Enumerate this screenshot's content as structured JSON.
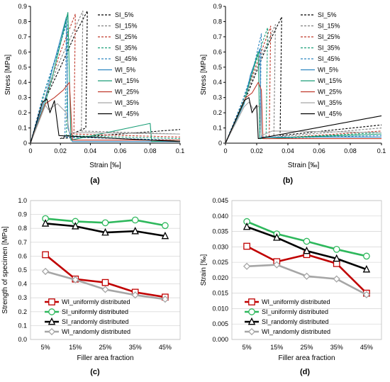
{
  "chart_data": [
    {
      "panel": "(a)",
      "type": "line",
      "xlabel": "Strain [‰]",
      "ylabel": "Stress [MPa]",
      "xlim": [
        0,
        0.1
      ],
      "ylim": [
        0,
        0.9
      ],
      "xticks": [
        "0",
        "0.02",
        "0.04",
        "0.06",
        "0.08",
        "0.1"
      ],
      "yticks": [
        "0",
        "0.1",
        "0.2",
        "0.3",
        "0.4",
        "0.5",
        "0.6",
        "0.7",
        "0.8",
        "0.9"
      ],
      "legend_position": "top-right",
      "series": [
        {
          "name": "SI_5%",
          "color": "#000000",
          "dash": true,
          "points": [
            [
              0,
              0
            ],
            [
              0.009,
              0.27
            ],
            [
              0.02,
              0.5
            ],
            [
              0.03,
              0.72
            ],
            [
              0.038,
              0.87
            ],
            [
              0.037,
              0.1
            ],
            [
              0.02,
              0.03
            ],
            [
              0.1,
              0.09
            ]
          ]
        },
        {
          "name": "SI_15%",
          "color": "#7f7f7f",
          "dash": true,
          "points": [
            [
              0,
              0
            ],
            [
              0.01,
              0.3
            ],
            [
              0.02,
              0.55
            ],
            [
              0.035,
              0.87
            ],
            [
              0.034,
              0.08
            ],
            [
              0.1,
              0.06
            ]
          ]
        },
        {
          "name": "SI_25%",
          "color": "#c0392b",
          "dash": true,
          "points": [
            [
              0,
              0
            ],
            [
              0.01,
              0.3
            ],
            [
              0.02,
              0.6
            ],
            [
              0.03,
              0.85
            ],
            [
              0.029,
              0.06
            ],
            [
              0.1,
              0.04
            ]
          ]
        },
        {
          "name": "SI_35%",
          "color": "#1a9e77",
          "dash": true,
          "points": [
            [
              0,
              0
            ],
            [
              0.01,
              0.35
            ],
            [
              0.02,
              0.65
            ],
            [
              0.025,
              0.84
            ],
            [
              0.024,
              0.05
            ],
            [
              0.1,
              0.03
            ]
          ]
        },
        {
          "name": "SI_45%",
          "color": "#2e86c1",
          "dash": true,
          "points": [
            [
              0,
              0
            ],
            [
              0.008,
              0.3
            ],
            [
              0.018,
              0.6
            ],
            [
              0.024,
              0.78
            ],
            [
              0.023,
              0.04
            ],
            [
              0.1,
              0.02
            ]
          ]
        },
        {
          "name": "WI_5%",
          "color": "#2e86c1",
          "dash": false,
          "points": [
            [
              0,
              0
            ],
            [
              0.01,
              0.3
            ],
            [
              0.015,
              0.5
            ],
            [
              0.024,
              0.83
            ],
            [
              0.025,
              0.1
            ],
            [
              0.028,
              0.01
            ],
            [
              0.1,
              0.01
            ]
          ]
        },
        {
          "name": "WI_15%",
          "color": "#1a9e77",
          "dash": false,
          "points": [
            [
              0,
              0
            ],
            [
              0.01,
              0.27
            ],
            [
              0.015,
              0.45
            ],
            [
              0.025,
              0.86
            ],
            [
              0.027,
              0.02
            ],
            [
              0.08,
              0.13
            ],
            [
              0.081,
              0.01
            ],
            [
              0.1,
              0.02
            ]
          ]
        },
        {
          "name": "WI_25%",
          "color": "#c0392b",
          "dash": false,
          "points": [
            [
              0,
              0
            ],
            [
              0.01,
              0.26
            ],
            [
              0.016,
              0.3
            ],
            [
              0.022,
              0.35
            ],
            [
              0.026,
              0.4
            ],
            [
              0.028,
              0.02
            ],
            [
              0.1,
              0.02
            ]
          ]
        },
        {
          "name": "WI_35%",
          "color": "#a6a6a6",
          "dash": false,
          "points": [
            [
              0,
              0
            ],
            [
              0.01,
              0.25
            ],
            [
              0.012,
              0.22
            ],
            [
              0.018,
              0.26
            ],
            [
              0.024,
              0.2
            ],
            [
              0.026,
              0.07
            ],
            [
              0.03,
              0.07
            ],
            [
              0.1,
              0.06
            ]
          ]
        },
        {
          "name": "WI_45%",
          "color": "#000000",
          "dash": false,
          "points": [
            [
              0,
              0
            ],
            [
              0.008,
              0.27
            ],
            [
              0.011,
              0.29
            ],
            [
              0.013,
              0.2
            ],
            [
              0.016,
              0.28
            ],
            [
              0.019,
              0.05
            ],
            [
              0.1,
              0.01
            ]
          ]
        }
      ]
    },
    {
      "panel": "(b)",
      "type": "line",
      "xlabel": "Strain [‰]",
      "ylabel": "Stress [MPa]",
      "xlim": [
        0,
        0.1
      ],
      "ylim": [
        0,
        0.9
      ],
      "xticks": [
        "0",
        "0.02",
        "0.04",
        "0.06",
        "0.08",
        "0.1"
      ],
      "yticks": [
        "0",
        "0.1",
        "0.2",
        "0.3",
        "0.4",
        "0.5",
        "0.6",
        "0.7",
        "0.8",
        "0.9"
      ],
      "legend_position": "top-right",
      "series": [
        {
          "name": "SI_5%",
          "color": "#000000",
          "dash": true,
          "points": [
            [
              0,
              0
            ],
            [
              0.012,
              0.27
            ],
            [
              0.025,
              0.6
            ],
            [
              0.036,
              0.83
            ],
            [
              0.035,
              0.05
            ],
            [
              0.1,
              0.12
            ]
          ]
        },
        {
          "name": "SI_15%",
          "color": "#7f7f7f",
          "dash": true,
          "points": [
            [
              0,
              0
            ],
            [
              0.012,
              0.28
            ],
            [
              0.022,
              0.55
            ],
            [
              0.032,
              0.78
            ],
            [
              0.031,
              0.04
            ],
            [
              0.1,
              0.1
            ]
          ]
        },
        {
          "name": "SI_25%",
          "color": "#c0392b",
          "dash": true,
          "points": [
            [
              0,
              0
            ],
            [
              0.012,
              0.3
            ],
            [
              0.02,
              0.52
            ],
            [
              0.029,
              0.77
            ],
            [
              0.028,
              0.03
            ],
            [
              0.1,
              0.08
            ]
          ]
        },
        {
          "name": "SI_35%",
          "color": "#1a9e77",
          "dash": true,
          "points": [
            [
              0,
              0
            ],
            [
              0.012,
              0.3
            ],
            [
              0.02,
              0.55
            ],
            [
              0.027,
              0.76
            ],
            [
              0.026,
              0.03
            ],
            [
              0.1,
              0.07
            ]
          ]
        },
        {
          "name": "SI_45%",
          "color": "#2e86c1",
          "dash": true,
          "points": [
            [
              0,
              0
            ],
            [
              0.011,
              0.28
            ],
            [
              0.018,
              0.5
            ],
            [
              0.023,
              0.72
            ],
            [
              0.022,
              0.03
            ],
            [
              0.1,
              0.05
            ]
          ]
        },
        {
          "name": "WI_5%",
          "color": "#2e86c1",
          "dash": false,
          "points": [
            [
              0,
              0
            ],
            [
              0.012,
              0.26
            ],
            [
              0.016,
              0.45
            ],
            [
              0.022,
              0.62
            ],
            [
              0.023,
              0.04
            ],
            [
              0.1,
              0.04
            ]
          ]
        },
        {
          "name": "WI_15%",
          "color": "#1a9e77",
          "dash": false,
          "points": [
            [
              0,
              0
            ],
            [
              0.012,
              0.27
            ],
            [
              0.016,
              0.42
            ],
            [
              0.021,
              0.6
            ],
            [
              0.022,
              0.03
            ],
            [
              0.1,
              0.06
            ]
          ]
        },
        {
          "name": "WI_25%",
          "color": "#c0392b",
          "dash": false,
          "points": [
            [
              0,
              0
            ],
            [
              0.013,
              0.3
            ],
            [
              0.017,
              0.33
            ],
            [
              0.021,
              0.4
            ],
            [
              0.023,
              0.35
            ],
            [
              0.024,
              0.03
            ],
            [
              0.1,
              0.03
            ]
          ]
        },
        {
          "name": "WI_35%",
          "color": "#a6a6a6",
          "dash": false,
          "points": [
            [
              0,
              0
            ],
            [
              0.012,
              0.24
            ],
            [
              0.015,
              0.27
            ],
            [
              0.018,
              0.22
            ],
            [
              0.022,
              0.25
            ],
            [
              0.023,
              0.05
            ],
            [
              0.03,
              0.08
            ],
            [
              0.1,
              0.07
            ]
          ]
        },
        {
          "name": "WI_45%",
          "color": "#000000",
          "dash": false,
          "points": [
            [
              0,
              0
            ],
            [
              0.012,
              0.28
            ],
            [
              0.015,
              0.3
            ],
            [
              0.017,
              0.2
            ],
            [
              0.02,
              0.25
            ],
            [
              0.021,
              0.03
            ],
            [
              0.1,
              0.18
            ]
          ]
        }
      ]
    },
    {
      "panel": "(c)",
      "type": "line",
      "xlabel": "Filler area fraction",
      "ylabel": "Strength of specimen [MPa]",
      "categories": [
        "5%",
        "15%",
        "25%",
        "35%",
        "45%"
      ],
      "ylim": [
        0,
        1.0
      ],
      "yticks": [
        "0.0",
        "0.1",
        "0.2",
        "0.3",
        "0.4",
        "0.5",
        "0.6",
        "0.7",
        "0.8",
        "0.9",
        "1.0"
      ],
      "legend_position": "bottom-left",
      "series": [
        {
          "name": "WI_uniformly distributed",
          "color": "#c00000",
          "marker": "square",
          "values": [
            0.61,
            0.435,
            0.41,
            0.34,
            0.305
          ]
        },
        {
          "name": "SI_uniformly distributed",
          "color": "#2eb85c",
          "marker": "circle",
          "values": [
            0.87,
            0.85,
            0.84,
            0.86,
            0.82
          ]
        },
        {
          "name": "SI_randomly distributed",
          "color": "#000000",
          "marker": "triangle",
          "values": [
            0.835,
            0.815,
            0.77,
            0.78,
            0.745
          ]
        },
        {
          "name": "WI_randomly distributed",
          "color": "#a6a6a6",
          "marker": "diamond",
          "values": [
            0.49,
            0.43,
            0.36,
            0.32,
            0.29
          ]
        }
      ]
    },
    {
      "panel": "(d)",
      "type": "line",
      "xlabel": "Filler area fraction",
      "ylabel": "Strain [‰]",
      "categories": [
        "5%",
        "15%",
        "25%",
        "35%",
        "45%"
      ],
      "ylim": [
        0,
        0.045
      ],
      "yticks": [
        "0.000",
        "0.005",
        "0.010",
        "0.015",
        "0.020",
        "0.025",
        "0.030",
        "0.035",
        "0.040",
        "0.045"
      ],
      "legend_position": "bottom-left",
      "series": [
        {
          "name": "WI_uniformly distributed",
          "color": "#c00000",
          "marker": "square",
          "values": [
            0.0302,
            0.0252,
            0.0275,
            0.0246,
            0.015
          ]
        },
        {
          "name": "SI_uniformly distributed",
          "color": "#2eb85c",
          "marker": "circle",
          "values": [
            0.0382,
            0.0342,
            0.0318,
            0.0292,
            0.027
          ]
        },
        {
          "name": "SI_randomly distributed",
          "color": "#000000",
          "marker": "triangle",
          "values": [
            0.0365,
            0.033,
            0.0287,
            0.0262,
            0.0227
          ]
        },
        {
          "name": "WI_randomly distributed",
          "color": "#a6a6a6",
          "marker": "diamond",
          "values": [
            0.0237,
            0.0242,
            0.0205,
            0.0196,
            0.0145
          ]
        }
      ]
    }
  ]
}
